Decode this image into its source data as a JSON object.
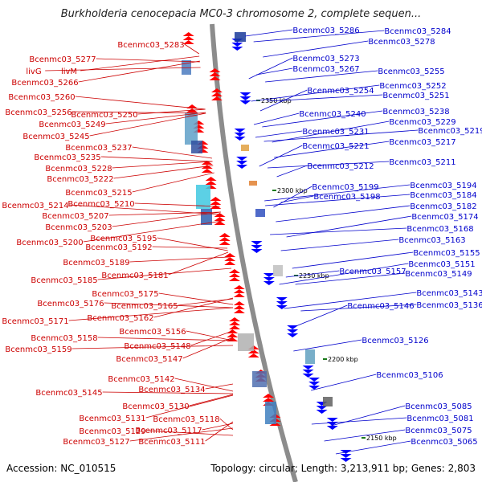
{
  "title": "Burkholderia cenocepacia MC0-3 chromosome 2, complete sequen...",
  "accession": "Accession: NC_010515",
  "topology": "Topology: circular; Length: 3,213,911 bp; Genes: 2,803",
  "colors": {
    "left_labels": "#cc0000",
    "right_labels": "#0000cc",
    "backbone": "#8c8c8c",
    "forward_gene": "#ff0000",
    "reverse_gene": "#0000ff",
    "ruler_tick": "#1a7a1a"
  },
  "ruler": [
    "2350 kbp",
    "2300 kbp",
    "2250 kbp",
    "2200 kbp",
    "2150 kbp"
  ],
  "left_genes": [
    "Bcenmc03_5283",
    "Bcenmc03_5277",
    "livG",
    "livM",
    "Bcenmc03_5266",
    "Bcenmc03_5260",
    "Bcenmc03_5256",
    "Bcenmc03_5250",
    "Bcenmc03_5249",
    "Bcenmc03_5245",
    "Bcenmc03_5237",
    "Bcenmc03_5235",
    "Bcenmc03_5228",
    "Bcenmc03_5222",
    "Bcenmc03_5215",
    "Bcenmc03_5214",
    "Bcenmc03_5210",
    "Bcenmc03_5207",
    "Bcenmc03_5203",
    "Bcenmc03_5200",
    "Bcenmc03_5195",
    "Bcenmc03_5192",
    "Bcenmc03_5189",
    "Bcenmc03_5185",
    "Bcenmc03_5181",
    "Bcenmc03_5175",
    "Bcenmc03_5176",
    "Bcenmc03_5165",
    "Bcenmc03_5171",
    "Bcenmc03_5162",
    "Bcenmc03_5156",
    "Bcenmc03_5158",
    "Bcenmc03_5159",
    "Bcenmc03_5148",
    "Bcenmc03_5147",
    "Bcenmc03_5142",
    "Bcenmc03_5145",
    "Bcenmc03_5134",
    "Bcenmc03_5130",
    "Bcenmc03_5131",
    "Bcenmc03_5118",
    "Bcenmc03_5129",
    "Bcenmc03_5117",
    "Bcenmc03_5127",
    "Bcenmc03_5111"
  ],
  "right_genes": [
    "Bcenmc03_5286",
    "Bcenmc03_5284",
    "Bcenmc03_5278",
    "Bcenmc03_5273",
    "Bcenmc03_5267",
    "Bcenmc03_5255",
    "Bcenmc03_5252",
    "Bcenmc03_5254",
    "Bcenmc03_5251",
    "Bcenmc03_5240",
    "Bcenmc03_5238",
    "Bcenmc03_5229",
    "Bcenmc03_5231",
    "Bcenmc03_5219",
    "Bcenmc03_5217",
    "Bcenmc03_5221",
    "Bcenmc03_5211",
    "Bcenmc03_5212",
    "Bcenmc03_5194",
    "Bcenmc03_5199",
    "Bcenmc03_5198",
    "Bcenmc03_5184",
    "Bcenmc03_5182",
    "Bcenmc03_5174",
    "Bcenmc03_5168",
    "Bcenmc03_5163",
    "Bcenmc03_5155",
    "Bcenmc03_5151",
    "Bcenmc03_5157",
    "Bcenmc03_5149",
    "Bcenmc03_5143",
    "Bcenmc03_5146",
    "Bcenmc03_5136",
    "Bcenmc03_5126",
    "Bcenmc03_5106",
    "Bcenmc03_5085",
    "Bcenmc03_5081",
    "Bcenmc03_5075",
    "Bcenmc03_5065"
  ]
}
